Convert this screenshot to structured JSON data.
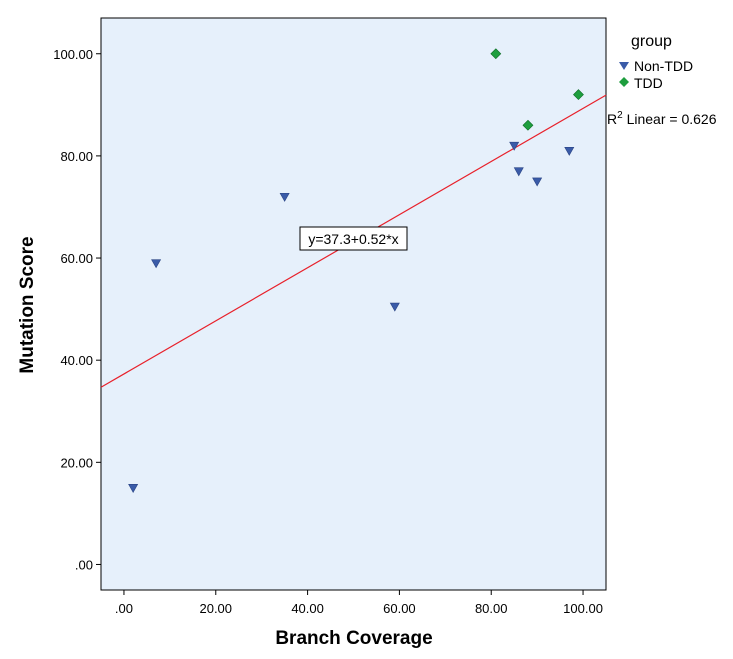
{
  "chart_data": {
    "type": "scatter",
    "xlabel": "Branch Coverage",
    "ylabel": "Mutation Score",
    "xlim": [
      -5,
      105
    ],
    "ylim": [
      -5,
      107
    ],
    "x_ticks": [
      0,
      20,
      40,
      60,
      80,
      100
    ],
    "x_tick_labels": [
      ".00",
      "20.00",
      "40.00",
      "60.00",
      "80.00",
      "100.00"
    ],
    "y_ticks": [
      0,
      20,
      40,
      60,
      80,
      100
    ],
    "y_tick_labels": [
      ".00",
      "20.00",
      "40.00",
      "60.00",
      "80.00",
      "100.00"
    ],
    "grid": false,
    "plot_background": "#e6f0fb",
    "legend": {
      "title": "group",
      "placement": "right"
    },
    "series": [
      {
        "name": "Non-TDD",
        "marker": "triangle-down",
        "color": "#3a5ba8",
        "points": [
          {
            "x": 2,
            "y": 15
          },
          {
            "x": 7,
            "y": 59
          },
          {
            "x": 35,
            "y": 72
          },
          {
            "x": 59,
            "y": 50.5
          },
          {
            "x": 85,
            "y": 82
          },
          {
            "x": 86,
            "y": 77
          },
          {
            "x": 90,
            "y": 75
          },
          {
            "x": 97,
            "y": 81
          }
        ]
      },
      {
        "name": "TDD",
        "marker": "diamond",
        "color": "#1e9e3e",
        "points": [
          {
            "x": 81,
            "y": 100
          },
          {
            "x": 88,
            "y": 86
          },
          {
            "x": 99,
            "y": 92
          }
        ]
      }
    ],
    "fit_line": {
      "intercept": 37.3,
      "slope": 0.52,
      "color": "#e8202a",
      "equation_label": "y=37.3+0.52*x",
      "r2_prefix": "R",
      "r2_suffix": " Linear = 0.626"
    }
  }
}
